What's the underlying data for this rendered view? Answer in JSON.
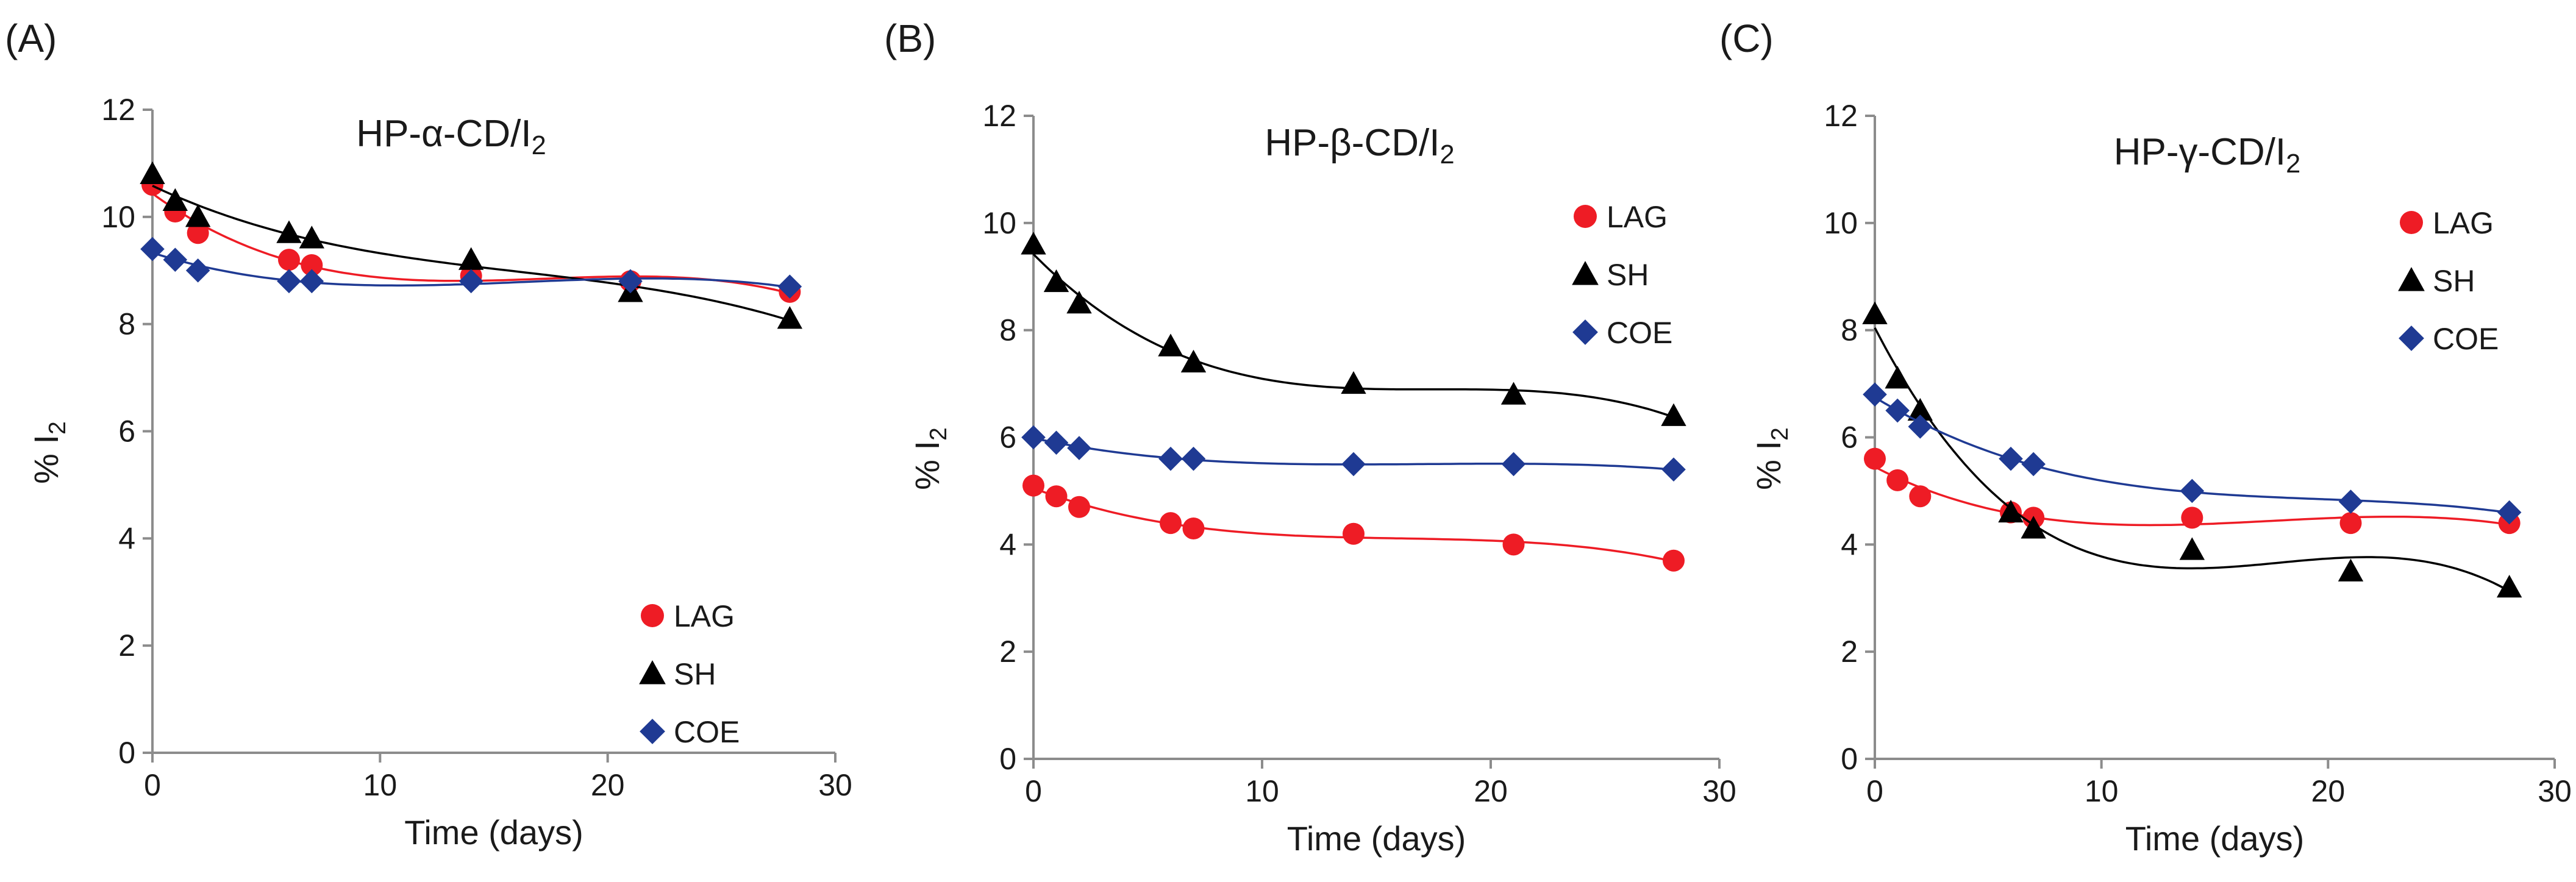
{
  "colors": {
    "LAG": "#ee1c25",
    "SH": "#000000",
    "COE": "#1f3a93"
  },
  "chart_data": [
    {
      "type": "scatter",
      "panel_label": "(A)",
      "title_prefix": "HP-α-CD/I",
      "title_sub": "2",
      "xlabel": "Time (days)",
      "ylabel_prefix": "% I",
      "ylabel_sub": "2",
      "xlim": [
        0,
        30
      ],
      "ylim": [
        0,
        12
      ],
      "xticks": [
        "0",
        "10",
        "20",
        "30"
      ],
      "yticks": [
        "0",
        "2",
        "4",
        "6",
        "8",
        "10",
        "12"
      ],
      "legend_position": "bottom-right",
      "trendline": "polynomial",
      "series": [
        {
          "name": "LAG",
          "marker": "circle",
          "x": [
            0,
            1,
            2,
            6,
            7,
            14,
            21,
            28
          ],
          "y": [
            10.6,
            10.1,
            9.7,
            9.2,
            9.1,
            8.9,
            8.8,
            8.6
          ]
        },
        {
          "name": "SH",
          "marker": "triangle",
          "x": [
            0,
            1,
            2,
            6,
            7,
            14,
            21,
            28
          ],
          "y": [
            10.8,
            10.3,
            10.0,
            9.7,
            9.6,
            9.2,
            8.6,
            8.1
          ]
        },
        {
          "name": "COE",
          "marker": "diamond",
          "x": [
            0,
            1,
            2,
            6,
            7,
            14,
            21,
            28
          ],
          "y": [
            9.4,
            9.2,
            9.0,
            8.8,
            8.8,
            8.8,
            8.8,
            8.7
          ]
        }
      ]
    },
    {
      "type": "scatter",
      "panel_label": "(B)",
      "title_prefix": "HP-β-CD/I",
      "title_sub": "2",
      "xlabel": "Time (days)",
      "ylabel_prefix": "% I",
      "ylabel_sub": "2",
      "xlim": [
        0,
        30
      ],
      "ylim": [
        0,
        12
      ],
      "xticks": [
        "0",
        "10",
        "20",
        "30"
      ],
      "yticks": [
        "0",
        "2",
        "4",
        "6",
        "8",
        "10",
        "12"
      ],
      "legend_position": "top-right",
      "trendline": "polynomial",
      "series": [
        {
          "name": "LAG",
          "marker": "circle",
          "x": [
            0,
            1,
            2,
            6,
            7,
            14,
            21,
            28
          ],
          "y": [
            5.1,
            4.9,
            4.7,
            4.4,
            4.3,
            4.2,
            4.0,
            3.7
          ]
        },
        {
          "name": "SH",
          "marker": "triangle",
          "x": [
            0,
            1,
            2,
            6,
            7,
            14,
            21,
            28
          ],
          "y": [
            9.6,
            8.9,
            8.5,
            7.7,
            7.4,
            7.0,
            6.8,
            6.4
          ]
        },
        {
          "name": "COE",
          "marker": "diamond",
          "x": [
            0,
            1,
            2,
            6,
            7,
            14,
            21,
            28
          ],
          "y": [
            6.0,
            5.9,
            5.8,
            5.6,
            5.6,
            5.5,
            5.5,
            5.4
          ]
        }
      ]
    },
    {
      "type": "scatter",
      "panel_label": "(C)",
      "title_prefix": "HP-γ-CD/I",
      "title_sub": "2",
      "xlabel": "Time (days)",
      "ylabel_prefix": "% I",
      "ylabel_sub": "2",
      "xlim": [
        0,
        30
      ],
      "ylim": [
        0,
        12
      ],
      "xticks": [
        "0",
        "10",
        "20",
        "30"
      ],
      "yticks": [
        "0",
        "2",
        "4",
        "6",
        "8",
        "10",
        "12"
      ],
      "legend_position": "top-right",
      "trendline": "polynomial",
      "series": [
        {
          "name": "LAG",
          "marker": "circle",
          "x": [
            0,
            1,
            2,
            6,
            7,
            14,
            21,
            28
          ],
          "y": [
            5.6,
            5.2,
            4.9,
            4.6,
            4.5,
            4.5,
            4.4,
            4.4
          ]
        },
        {
          "name": "SH",
          "marker": "triangle",
          "x": [
            0,
            1,
            2,
            6,
            7,
            14,
            21,
            28
          ],
          "y": [
            8.3,
            7.1,
            6.5,
            4.6,
            4.3,
            3.9,
            3.5,
            3.2
          ]
        },
        {
          "name": "COE",
          "marker": "diamond",
          "x": [
            0,
            1,
            2,
            6,
            7,
            14,
            21,
            28
          ],
          "y": [
            6.8,
            6.5,
            6.2,
            5.6,
            5.5,
            5.0,
            4.8,
            4.6
          ]
        }
      ]
    }
  ]
}
